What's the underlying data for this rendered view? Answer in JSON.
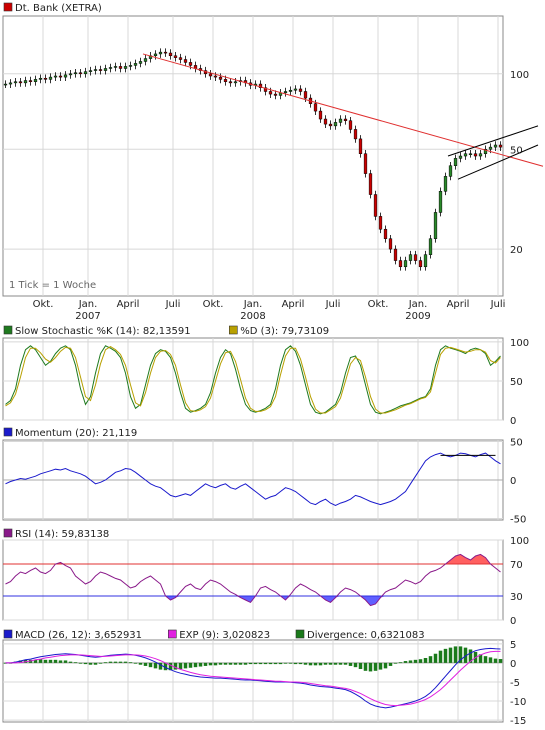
{
  "colors": {
    "price_up": "#2a8a2a",
    "price_down": "#cc0000",
    "trendline": "#e03030",
    "channel": "#000000",
    "stoch_k": "#1f7a1f",
    "stoch_d": "#b8a000",
    "momentum": "#1a1acc",
    "rsi": "#8a1a8a",
    "rsi_upper": "#e03030",
    "rsi_lower": "#3030e0",
    "rsi_over_fill": "#ff6060",
    "rsi_under_fill": "#6060ff",
    "macd": "#1a1acc",
    "macd_exp": "#e020e0",
    "divergence": "#1a7a1a",
    "grid": "#d8d8d8",
    "frame": "#888888"
  },
  "chart_data": [
    {
      "id": "price",
      "type": "candlestick",
      "legend": [
        {
          "name": "Dt. Bank (XETRA)",
          "color_key": "price_down"
        }
      ],
      "note": "1 Tick = 1 Woche",
      "yscale": "log",
      "ylim": [
        13,
        170
      ],
      "yticks": [
        {
          "value": 100,
          "label": "100"
        },
        {
          "value": 50,
          "label": "50"
        },
        {
          "value": 20,
          "label": "20"
        }
      ],
      "xlim": [
        0,
        100
      ],
      "xticks": [
        {
          "pos": 8,
          "label": "Okt.",
          "year": ""
        },
        {
          "pos": 17,
          "label": "Jan.",
          "year": "2007"
        },
        {
          "pos": 25,
          "label": "April",
          "year": ""
        },
        {
          "pos": 34,
          "label": "Juli",
          "year": ""
        },
        {
          "pos": 42,
          "label": "Okt.",
          "year": ""
        },
        {
          "pos": 50,
          "label": "Jan.",
          "year": "2008"
        },
        {
          "pos": 58,
          "label": "April",
          "year": ""
        },
        {
          "pos": 66,
          "label": "Juli",
          "year": ""
        },
        {
          "pos": 75,
          "label": "Okt.",
          "year": ""
        },
        {
          "pos": 83,
          "label": "Jan.",
          "year": "2009"
        },
        {
          "pos": 91,
          "label": "April",
          "year": ""
        },
        {
          "pos": 99,
          "label": "Juli",
          "year": ""
        }
      ],
      "close": [
        91,
        92,
        93,
        92,
        94,
        93,
        95,
        96,
        95,
        97,
        98,
        97,
        99,
        100,
        101,
        100,
        102,
        103,
        104,
        103,
        105,
        106,
        107,
        105,
        107,
        108,
        110,
        112,
        115,
        118,
        120,
        122,
        121,
        118,
        116,
        114,
        111,
        108,
        105,
        103,
        100,
        98,
        97,
        95,
        93,
        92,
        93,
        94,
        92,
        90,
        91,
        88,
        85,
        83,
        82,
        84,
        85,
        86,
        87,
        85,
        80,
        76,
        71,
        66,
        63,
        62,
        64,
        66,
        65,
        60,
        55,
        48,
        40,
        33,
        27,
        24,
        22,
        20,
        18,
        17,
        18,
        19,
        18,
        17,
        19,
        22,
        28,
        34,
        39,
        43,
        46,
        47,
        48,
        48,
        47,
        48,
        50,
        51,
        52,
        51
      ],
      "trend_line": {
        "from": {
          "t": 28,
          "v": 120
        },
        "to": {
          "t": 100,
          "v": 46
        }
      },
      "channel_upper": {
        "from": {
          "t": 89,
          "v": 47
        },
        "to": {
          "t": 100,
          "v": 62
        }
      },
      "channel_lower": {
        "from": {
          "t": 91,
          "v": 38
        },
        "to": {
          "t": 100,
          "v": 52
        }
      }
    },
    {
      "id": "stochastic",
      "type": "line",
      "legend": [
        {
          "name": "Slow Stochastic %K (14): 82,13591",
          "color_key": "stoch_k"
        },
        {
          "name": "%D (3): 79,73109",
          "color_key": "stoch_d"
        }
      ],
      "ylim": [
        0,
        105
      ],
      "yticks": [
        {
          "value": 100,
          "label": "100"
        },
        {
          "value": 50,
          "label": "50"
        },
        {
          "value": 0,
          "label": "0"
        }
      ],
      "series": [
        {
          "name": "Slow Stochastic %K (14)",
          "color_key": "stoch_k",
          "values": [
            20,
            25,
            40,
            70,
            90,
            95,
            90,
            80,
            70,
            75,
            85,
            92,
            95,
            90,
            70,
            40,
            20,
            30,
            60,
            85,
            95,
            92,
            88,
            80,
            60,
            30,
            15,
            20,
            45,
            70,
            85,
            90,
            88,
            80,
            60,
            35,
            15,
            10,
            12,
            15,
            20,
            35,
            60,
            80,
            90,
            85,
            65,
            40,
            20,
            12,
            10,
            12,
            15,
            20,
            40,
            70,
            90,
            95,
            88,
            70,
            45,
            20,
            10,
            8,
            10,
            15,
            20,
            35,
            60,
            80,
            82,
            70,
            45,
            20,
            10,
            8,
            10,
            12,
            15,
            18,
            20,
            22,
            25,
            28,
            30,
            40,
            70,
            90,
            95,
            92,
            90,
            88,
            85,
            90,
            92,
            90,
            85,
            70,
            75,
            82
          ]
        },
        {
          "name": "%D (3)",
          "color_key": "stoch_d",
          "values": [
            18,
            22,
            33,
            55,
            80,
            92,
            92,
            86,
            78,
            74,
            80,
            88,
            93,
            92,
            80,
            55,
            30,
            25,
            45,
            72,
            90,
            94,
            90,
            84,
            70,
            45,
            22,
            18,
            35,
            60,
            80,
            88,
            89,
            84,
            70,
            45,
            22,
            12,
            11,
            13,
            17,
            28,
            50,
            72,
            86,
            88,
            75,
            52,
            28,
            15,
            11,
            11,
            13,
            17,
            30,
            58,
            82,
            92,
            92,
            78,
            55,
            30,
            14,
            9,
            9,
            13,
            17,
            28,
            50,
            72,
            80,
            76,
            55,
            30,
            14,
            9,
            9,
            11,
            13,
            16,
            19,
            21,
            24,
            27,
            29,
            36,
            60,
            84,
            92,
            93,
            91,
            89,
            87,
            88,
            90,
            90,
            87,
            76,
            73,
            80
          ]
        }
      ]
    },
    {
      "id": "momentum",
      "type": "line",
      "legend": [
        {
          "name": "Momentum (20): 21,119",
          "color_key": "momentum"
        }
      ],
      "ylim": [
        -52,
        52
      ],
      "yticks": [
        {
          "value": 50,
          "label": "50"
        },
        {
          "value": 0,
          "label": "0"
        },
        {
          "value": -50,
          "label": "-50"
        }
      ],
      "series": [
        {
          "name": "Momentum (20)",
          "color_key": "momentum",
          "values": [
            -5,
            -2,
            0,
            2,
            1,
            3,
            5,
            8,
            10,
            12,
            14,
            13,
            15,
            12,
            10,
            8,
            5,
            0,
            -5,
            -3,
            0,
            5,
            10,
            12,
            15,
            14,
            10,
            5,
            0,
            -5,
            -8,
            -10,
            -15,
            -20,
            -22,
            -20,
            -18,
            -20,
            -15,
            -10,
            -5,
            -8,
            -10,
            -7,
            -5,
            -10,
            -12,
            -8,
            -5,
            -10,
            -15,
            -20,
            -25,
            -22,
            -20,
            -15,
            -10,
            -12,
            -15,
            -20,
            -25,
            -30,
            -32,
            -28,
            -25,
            -30,
            -33,
            -30,
            -28,
            -25,
            -20,
            -22,
            -25,
            -28,
            -30,
            -32,
            -30,
            -28,
            -25,
            -20,
            -15,
            -5,
            5,
            15,
            25,
            30,
            33,
            35,
            32,
            30,
            32,
            35,
            34,
            32,
            30,
            33,
            35,
            30,
            25,
            21
          ]
        }
      ],
      "level_mark": {
        "from_t": 87,
        "to_t": 98,
        "value": 32
      }
    },
    {
      "id": "rsi",
      "type": "line",
      "legend": [
        {
          "name": "RSI (14): 59,83138",
          "color_key": "rsi"
        }
      ],
      "ylim": [
        0,
        100
      ],
      "yticks": [
        {
          "value": 100,
          "label": "100"
        },
        {
          "value": 70,
          "label": "70"
        },
        {
          "value": 30,
          "label": "30"
        },
        {
          "value": 0,
          "label": "0"
        }
      ],
      "upper": 70,
      "lower": 30,
      "series": [
        {
          "name": "RSI (14)",
          "color_key": "rsi",
          "values": [
            45,
            48,
            55,
            60,
            58,
            62,
            65,
            60,
            58,
            62,
            70,
            72,
            68,
            65,
            55,
            50,
            45,
            48,
            55,
            60,
            58,
            55,
            52,
            50,
            45,
            40,
            42,
            48,
            52,
            55,
            50,
            45,
            30,
            25,
            28,
            35,
            42,
            45,
            40,
            38,
            45,
            50,
            48,
            45,
            40,
            35,
            32,
            28,
            25,
            22,
            30,
            40,
            42,
            38,
            35,
            30,
            25,
            32,
            40,
            45,
            42,
            38,
            35,
            30,
            25,
            22,
            28,
            35,
            40,
            38,
            35,
            30,
            25,
            18,
            20,
            28,
            35,
            38,
            40,
            45,
            50,
            48,
            45,
            48,
            55,
            60,
            62,
            65,
            70,
            75,
            80,
            82,
            78,
            75,
            80,
            82,
            78,
            70,
            65,
            60
          ]
        }
      ]
    },
    {
      "id": "macd",
      "type": "line+bar",
      "legend": [
        {
          "name": "MACD (26, 12): 3,652931",
          "color_key": "macd"
        },
        {
          "name": "EXP (9): 3,020823",
          "color_key": "macd_exp"
        },
        {
          "name": "Divergence: 0,6321083",
          "color_key": "divergence"
        }
      ],
      "ylim": [
        -15.5,
        6
      ],
      "yticks": [
        {
          "value": 5,
          "label": "5"
        },
        {
          "value": 0,
          "label": "0"
        },
        {
          "value": -5,
          "label": "-5"
        },
        {
          "value": -10,
          "label": "-10"
        },
        {
          "value": -15,
          "label": "-15"
        }
      ],
      "series": [
        {
          "name": "MACD (26, 12)",
          "color_key": "macd",
          "values": [
            0,
            0,
            0.2,
            0.5,
            0.8,
            1,
            1.3,
            1.6,
            1.8,
            2,
            2.2,
            2.3,
            2.4,
            2.3,
            2.2,
            2,
            1.8,
            1.6,
            1.5,
            1.6,
            1.8,
            2,
            2.1,
            2.2,
            2.3,
            2.2,
            2,
            1.7,
            1.3,
            0.8,
            0.2,
            -0.5,
            -1.2,
            -1.8,
            -2.3,
            -2.7,
            -3,
            -3.3,
            -3.5,
            -3.7,
            -3.8,
            -3.9,
            -4,
            -4,
            -4.1,
            -4.2,
            -4.3,
            -4.4,
            -4.5,
            -4.5,
            -4.6,
            -4.7,
            -4.8,
            -4.9,
            -5,
            -5,
            -5,
            -5.1,
            -5.2,
            -5.3,
            -5.5,
            -5.8,
            -6,
            -6.2,
            -6.3,
            -6.4,
            -6.6,
            -6.8,
            -7,
            -7.5,
            -8.2,
            -9,
            -10,
            -10.8,
            -11.3,
            -11.6,
            -11.8,
            -11.6,
            -11.3,
            -11,
            -10.7,
            -10.4,
            -10,
            -9.5,
            -8.8,
            -7.8,
            -6.5,
            -5,
            -3.5,
            -2,
            -0.5,
            0.8,
            1.8,
            2.6,
            3.2,
            3.5,
            3.7,
            3.8,
            3.7,
            3.65
          ]
        },
        {
          "name": "EXP (9)",
          "color_key": "macd_exp",
          "values": [
            0,
            0,
            0,
            0.1,
            0.3,
            0.5,
            0.8,
            1,
            1.3,
            1.5,
            1.7,
            1.9,
            2,
            2.1,
            2.1,
            2.1,
            2,
            1.9,
            1.8,
            1.7,
            1.7,
            1.8,
            1.9,
            2,
            2.1,
            2.1,
            2.1,
            2,
            1.8,
            1.5,
            1.1,
            0.6,
            0,
            -0.6,
            -1.2,
            -1.7,
            -2.1,
            -2.5,
            -2.8,
            -3.1,
            -3.3,
            -3.5,
            -3.6,
            -3.7,
            -3.8,
            -3.9,
            -4,
            -4.1,
            -4.2,
            -4.3,
            -4.4,
            -4.5,
            -4.6,
            -4.7,
            -4.8,
            -4.8,
            -4.9,
            -5,
            -5,
            -5.1,
            -5.2,
            -5.4,
            -5.6,
            -5.8,
            -6,
            -6.1,
            -6.3,
            -6.5,
            -6.7,
            -7,
            -7.5,
            -8,
            -8.7,
            -9.4,
            -10,
            -10.5,
            -10.9,
            -11.1,
            -11.2,
            -11.1,
            -11,
            -10.8,
            -10.5,
            -10.1,
            -9.6,
            -8.9,
            -8,
            -7,
            -5.8,
            -4.5,
            -3.2,
            -1.9,
            -0.7,
            0.4,
            1.4,
            2.1,
            2.6,
            2.9,
            3,
            3.02
          ]
        },
        {
          "name": "Divergence",
          "color_key": "divergence",
          "type": "bar",
          "values": [
            0,
            0,
            0.2,
            0.4,
            0.5,
            0.5,
            0.5,
            0.6,
            0.5,
            0.5,
            0.5,
            0.4,
            0.4,
            0.2,
            0.1,
            -0.1,
            -0.2,
            -0.3,
            -0.3,
            -0.1,
            0.1,
            0.2,
            0.2,
            0.2,
            0.2,
            0.1,
            -0.1,
            -0.3,
            -0.5,
            -0.7,
            -0.9,
            -1.1,
            -1.2,
            -1.2,
            -1.1,
            -1,
            -0.9,
            -0.8,
            -0.7,
            -0.6,
            -0.5,
            -0.4,
            -0.4,
            -0.3,
            -0.3,
            -0.3,
            -0.3,
            -0.3,
            -0.3,
            -0.2,
            -0.2,
            -0.2,
            -0.2,
            -0.2,
            -0.2,
            -0.2,
            -0.1,
            -0.1,
            -0.2,
            -0.2,
            -0.3,
            -0.4,
            -0.4,
            -0.4,
            -0.3,
            -0.3,
            -0.3,
            -0.3,
            -0.3,
            -0.5,
            -0.7,
            -1,
            -1.3,
            -1.4,
            -1.3,
            -1.1,
            -0.9,
            -0.5,
            -0.1,
            0.1,
            0.3,
            0.4,
            0.5,
            0.6,
            0.8,
            1.1,
            1.5,
            2,
            2.3,
            2.5,
            2.7,
            2.7,
            2.5,
            2.2,
            1.8,
            1.4,
            1.1,
            0.9,
            0.7,
            0.63
          ]
        }
      ]
    }
  ]
}
